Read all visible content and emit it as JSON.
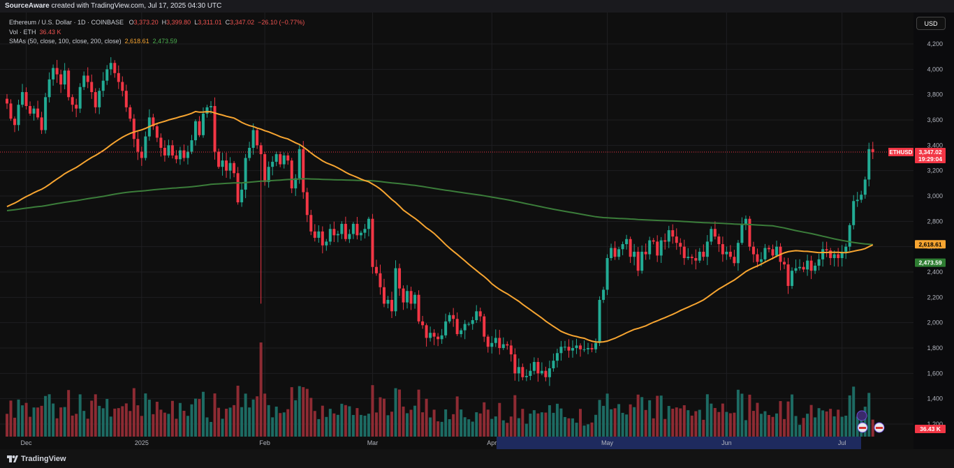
{
  "topbar": {
    "author": "SourceAware",
    "text": "created with TradingView.com, Jul 17, 2025 04:30 UTC"
  },
  "legend": {
    "symbol": "Ethereum / U.S. Dollar · 1D · COINBASE",
    "open_label": "O",
    "open": "3,373.20",
    "high_label": "H",
    "high": "3,399.80",
    "low_label": "L",
    "low": "3,311.01",
    "close_label": "C",
    "close": "3,347.02",
    "change": "−26.10 (−0.77%)",
    "vol_label": "Vol · ETH",
    "vol": "36.43 K",
    "sma_label": "SMAs (50, close, 100, close, 200, close)",
    "sma1": "2,618.61",
    "sma2": "2,473.59"
  },
  "currency": "USD",
  "footer": {
    "brand": "TradingView"
  },
  "colors": {
    "up": "#22ab94",
    "down": "#f23645",
    "up_vol": "#1d6b63",
    "down_vol": "#8e2b33",
    "sma_fast": "#f7a531",
    "sma_slow": "#3b7d3a",
    "bg": "#0f0f0f",
    "grid": "#1f1f22",
    "axis_bg": "#0b0b0d",
    "selection": "#1e2a5e"
  },
  "chart_data": {
    "type": "candlestick",
    "symbol": "ETHUSD",
    "timeframe": "1D",
    "ylim": [
      1150,
      4300
    ],
    "y_ticks": [
      1200,
      1400,
      1600,
      1800,
      2000,
      2200,
      2400,
      2600,
      2800,
      3000,
      3200,
      3400,
      3600,
      3800,
      4000,
      4200
    ],
    "x_labels": [
      "Dec",
      "2025",
      "Feb",
      "Mar",
      "Apr",
      "May",
      "Jun",
      "Jul"
    ],
    "x_label_index": [
      5,
      35,
      67,
      95,
      126,
      156,
      187,
      217
    ],
    "selected_range": [
      "Apr",
      "Jul"
    ],
    "price_labels": {
      "last": "3,347.02",
      "countdown": "19:29:04",
      "sma_fast": "2,618.61",
      "sma_slow": "2,473.59",
      "volume": "36.43 K",
      "symbol_tag": "ETHUSD"
    },
    "last_price": 3347.02,
    "sma_fast_last": 2618.61,
    "sma_slow_last": 2473.59,
    "close": [
      3730,
      3610,
      3560,
      3720,
      3820,
      3710,
      3650,
      3690,
      3620,
      3520,
      3780,
      3920,
      4010,
      3960,
      3880,
      3990,
      3780,
      3720,
      3690,
      3860,
      3950,
      3900,
      3820,
      3700,
      3830,
      3910,
      4000,
      4050,
      3970,
      3900,
      3830,
      3700,
      3610,
      3450,
      3350,
      3300,
      3470,
      3620,
      3550,
      3460,
      3380,
      3320,
      3400,
      3320,
      3290,
      3360,
      3300,
      3350,
      3440,
      3590,
      3480,
      3650,
      3700,
      3710,
      3350,
      3230,
      3280,
      3200,
      3260,
      3180,
      2950,
      3050,
      3300,
      3380,
      3520,
      3400,
      3330,
      3110,
      3230,
      3270,
      3330,
      3250,
      3320,
      3280,
      3060,
      3140,
      3370,
      3030,
      2850,
      2720,
      2670,
      2720,
      2610,
      2640,
      2740,
      2690,
      2700,
      2780,
      2660,
      2700,
      2780,
      2690,
      2710,
      2740,
      2820,
      2440,
      2390,
      2280,
      2150,
      2180,
      2090,
      2430,
      2270,
      2160,
      2250,
      2150,
      2220,
      2010,
      1980,
      1880,
      1920,
      1890,
      1870,
      1900,
      2010,
      2060,
      2030,
      1910,
      1940,
      1990,
      1990,
      2020,
      2090,
      2050,
      1890,
      1810,
      1840,
      1880,
      1800,
      1830,
      1820,
      1750,
      1600,
      1650,
      1570,
      1580,
      1620,
      1690,
      1600,
      1620,
      1570,
      1640,
      1700,
      1760,
      1810,
      1810,
      1780,
      1800,
      1820,
      1790,
      1790,
      1800,
      1790,
      1840,
      2180,
      2260,
      2510,
      2590,
      2520,
      2580,
      2620,
      2660,
      2520,
      2560,
      2410,
      2560,
      2540,
      2650,
      2640,
      2530,
      2650,
      2640,
      2730,
      2680,
      2630,
      2600,
      2510,
      2520,
      2510,
      2490,
      2560,
      2520,
      2640,
      2740,
      2680,
      2620,
      2540,
      2560,
      2520,
      2470,
      2630,
      2780,
      2820,
      2600,
      2540,
      2480,
      2500,
      2590,
      2580,
      2530,
      2600,
      2480,
      2460,
      2290,
      2410,
      2430,
      2440,
      2420,
      2490,
      2410,
      2450,
      2500,
      2580,
      2570,
      2510,
      2540,
      2510,
      2560,
      2600,
      2770,
      2960,
      2970,
      3010,
      3130,
      3370,
      3347.02
    ]
  }
}
